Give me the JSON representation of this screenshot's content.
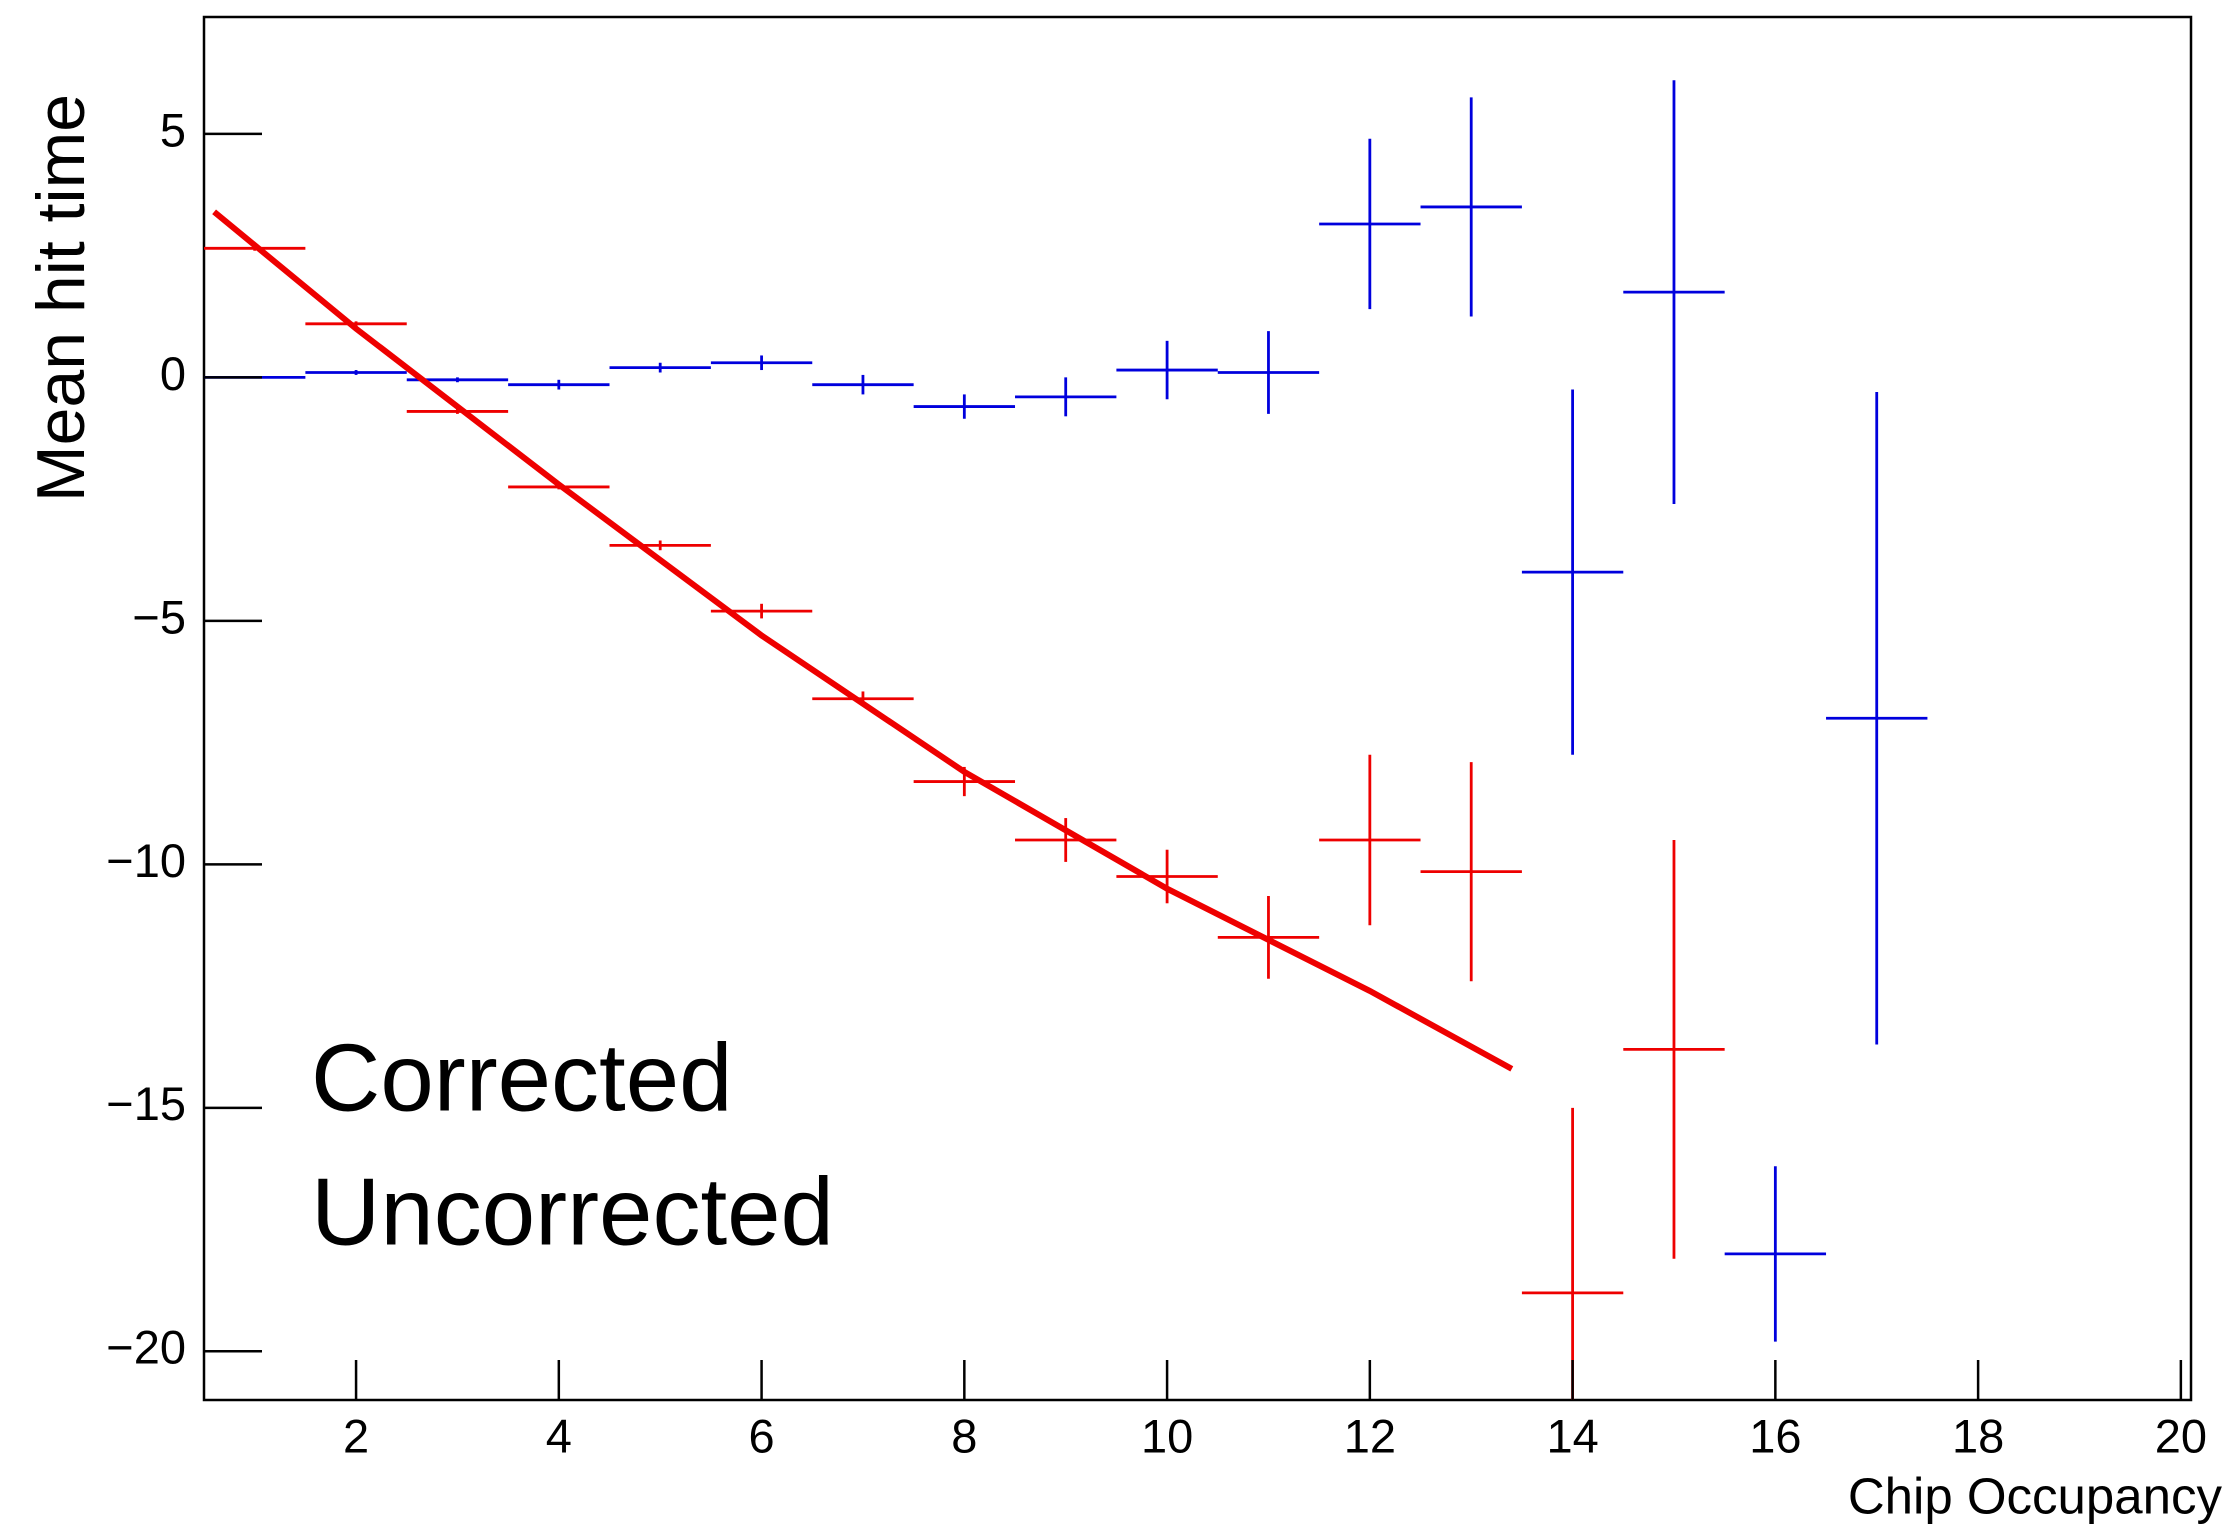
{
  "chart_data": {
    "type": "errorbar",
    "xlabel": "Chip Occupancy",
    "ylabel": "Mean hit time",
    "xlim": [
      0.5,
      20.1
    ],
    "ylim": [
      -21,
      7.4
    ],
    "xticks": [
      2,
      4,
      6,
      8,
      10,
      12,
      14,
      16,
      18,
      20
    ],
    "yticks": [
      {
        "value": -20,
        "label": "−20"
      },
      {
        "value": -15,
        "label": "−15"
      },
      {
        "value": -10,
        "label": "−10"
      },
      {
        "value": -5,
        "label": "−5"
      },
      0,
      5
    ],
    "series": [
      {
        "name": "Corrected",
        "color": "#0000dd",
        "label_color": "#4472c4",
        "x": [
          1,
          2,
          3,
          4,
          5,
          6,
          7,
          8,
          9,
          10,
          11,
          12,
          13,
          14,
          15,
          16,
          17
        ],
        "values": [
          0,
          0.1,
          -0.05,
          -0.15,
          0.2,
          0.3,
          -0.15,
          -0.6,
          -0.4,
          0.15,
          0.1,
          3.15,
          3.5,
          -4.0,
          1.75,
          -18.0,
          -7.0
        ],
        "xerr": [
          0.5,
          0.5,
          0.5,
          0.5,
          0.5,
          0.5,
          0.5,
          0.5,
          0.5,
          0.5,
          0.5,
          0.5,
          0.5,
          0.5,
          0.5,
          0.5,
          0.5
        ],
        "yerr": [
          0.02,
          0.05,
          0.05,
          0.1,
          0.1,
          0.15,
          0.2,
          0.25,
          0.4,
          0.6,
          0.85,
          1.75,
          2.25,
          3.75,
          4.35,
          1.8,
          6.7
        ]
      },
      {
        "name": "Uncorrected",
        "color": "#ee0000",
        "label_color": "#ff2a00",
        "x": [
          1,
          2,
          3,
          4,
          5,
          6,
          7,
          8,
          9,
          10,
          11,
          12,
          13,
          14,
          15
        ],
        "values": [
          2.65,
          1.1,
          -0.7,
          -2.25,
          -3.45,
          -4.8,
          -6.6,
          -8.3,
          -9.5,
          -10.25,
          -11.5,
          -9.5,
          -10.15,
          -18.8,
          -13.8
        ],
        "xerr": [
          0.5,
          0.5,
          0.5,
          0.5,
          0.5,
          0.5,
          0.5,
          0.5,
          0.5,
          0.5,
          0.5,
          0.5,
          0.5,
          0.5,
          0.5
        ],
        "yerr": [
          0.05,
          0.05,
          0.05,
          0.05,
          0.1,
          0.15,
          0.15,
          0.3,
          0.45,
          0.55,
          0.85,
          1.75,
          2.25,
          3.8,
          4.3
        ]
      }
    ],
    "fit": {
      "color": "#ee0000",
      "x": [
        0.6,
        2,
        4,
        6,
        8,
        10,
        12,
        13.4
      ],
      "values": [
        3.4,
        1.0,
        -2.2,
        -5.3,
        -8.1,
        -10.5,
        -12.6,
        -14.2
      ]
    }
  }
}
